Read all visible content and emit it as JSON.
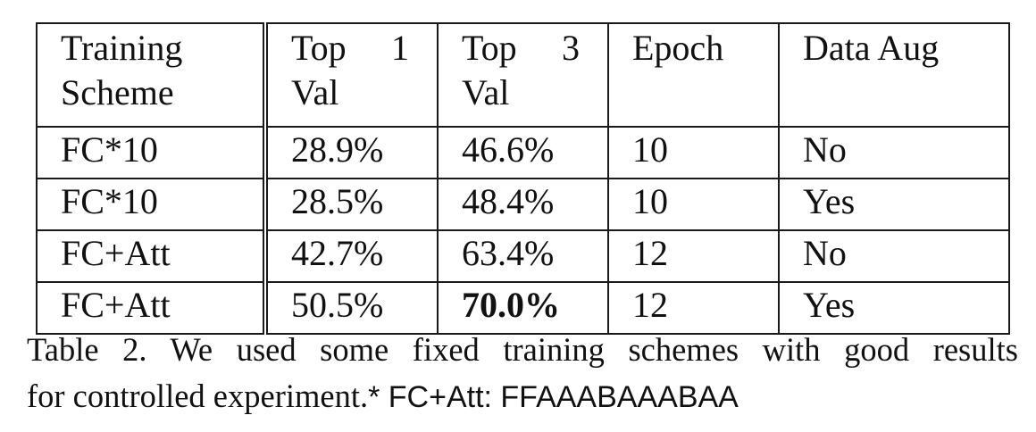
{
  "table": {
    "headers": [
      {
        "line1": "Training",
        "line2": "Scheme"
      },
      {
        "line1a": "Top",
        "line1b": "1",
        "line2": "Val"
      },
      {
        "line1a": "Top",
        "line1b": "3",
        "line2": "Val"
      },
      {
        "line1": "Epoch"
      },
      {
        "line1": "Data Aug"
      }
    ],
    "rows": [
      {
        "scheme": "FC*10",
        "top1": "28.9%",
        "top3": "46.6%",
        "epoch": "10",
        "aug": "No"
      },
      {
        "scheme": "FC*10",
        "top1": "28.5%",
        "top3": "48.4%",
        "epoch": "10",
        "aug": "Yes"
      },
      {
        "scheme": "FC+Att",
        "top1": "42.7%",
        "top3": "63.4%",
        "epoch": "12",
        "aug": "No"
      },
      {
        "scheme": "FC+Att",
        "top1": "50.5%",
        "top3": "70.0%",
        "epoch": "12",
        "aug": "Yes"
      }
    ],
    "bold_cells": [
      "rows.3.top3"
    ]
  },
  "caption": {
    "line1": "Table 2. We used some fixed training schemes with good results",
    "line2_serif": "for controlled experiment.",
    "line2_sans": "* FC+Att: FFAAABAAABAA"
  }
}
